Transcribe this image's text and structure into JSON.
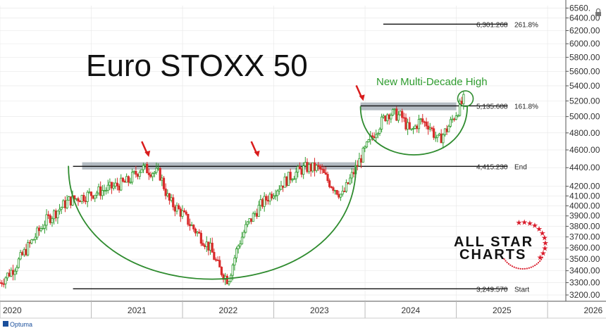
{
  "chart_data": {
    "type": "candlestick",
    "title": "Euro STOXX 50",
    "y_axis": {
      "scale": "log",
      "side": "right",
      "ylim": [
        3150,
        6600
      ],
      "ticks": [
        "6560.",
        "6400.00",
        "6200.00",
        "6000.00",
        "5800.00",
        "5600.00",
        "5400.00",
        "5200.00",
        "5000.00",
        "4800.00",
        "4600.00",
        "4400.00",
        "4200.00",
        "4100.00",
        "4000.00",
        "3900.00",
        "3800.00",
        "3700.00",
        "3600.00",
        "3500.00",
        "3400.00",
        "3300.00",
        "3200.00"
      ]
    },
    "x_axis": {
      "labels": [
        "2020",
        "2021",
        "2022",
        "2023",
        "2024",
        "2025",
        "2026"
      ],
      "xlim": [
        2020.0,
        2026.2
      ]
    },
    "price_path": [
      [
        2020.0,
        3300
      ],
      [
        2020.15,
        3420
      ],
      [
        2020.3,
        3600
      ],
      [
        2020.5,
        3850
      ],
      [
        2020.75,
        4050
      ],
      [
        2021.0,
        4120
      ],
      [
        2021.2,
        4180
      ],
      [
        2021.4,
        4250
      ],
      [
        2021.55,
        4400
      ],
      [
        2021.75,
        4330
      ],
      [
        2021.85,
        4050
      ],
      [
        2022.0,
        3920
      ],
      [
        2022.1,
        3800
      ],
      [
        2022.2,
        3700
      ],
      [
        2022.3,
        3600
      ],
      [
        2022.4,
        3420
      ],
      [
        2022.5,
        3320
      ],
      [
        2022.6,
        3600
      ],
      [
        2022.7,
        3800
      ],
      [
        2022.85,
        4000
      ],
      [
        2023.0,
        4150
      ],
      [
        2023.2,
        4320
      ],
      [
        2023.35,
        4400
      ],
      [
        2023.5,
        4390
      ],
      [
        2023.6,
        4250
      ],
      [
        2023.75,
        4100
      ],
      [
        2023.85,
        4300
      ],
      [
        2023.95,
        4500
      ],
      [
        2024.1,
        4800
      ],
      [
        2024.25,
        5050
      ],
      [
        2024.4,
        5000
      ],
      [
        2024.5,
        4800
      ],
      [
        2024.6,
        4950
      ],
      [
        2024.7,
        4900
      ],
      [
        2024.8,
        4700
      ],
      [
        2024.9,
        4850
      ],
      [
        2025.0,
        5050
      ],
      [
        2025.1,
        5250
      ]
    ],
    "fib_levels": [
      {
        "value": "6,301.268",
        "label": "261.8%",
        "price": 6301.268,
        "x_start": 2024.2
      },
      {
        "value": "5,135.608",
        "label": "161.8%",
        "price": 5135.608,
        "x_start": 2023.95
      },
      {
        "value": "4,415.230",
        "label": "End",
        "price": 4415.23,
        "x_start": 2020.8
      },
      {
        "value": "3,249.570",
        "label": "Start",
        "price": 3249.57,
        "x_start": 2020.8
      }
    ],
    "resistance_zones": [
      {
        "price_low": 4380,
        "price_high": 4460,
        "x_start": 2020.9,
        "x_end": 2023.9
      },
      {
        "price_low": 5080,
        "price_high": 5180,
        "x_start": 2023.95,
        "x_end": 2025.0
      }
    ],
    "arrows": [
      2021.6,
      2022.8,
      2023.95
    ],
    "annotation": "New Multi-Decade High",
    "arc_color": "#2e8b2e",
    "up_color": "#2e9b2e",
    "down_color": "#d92b2b"
  },
  "brand": {
    "line1": "ALL STAR",
    "line2": "CHARTS"
  },
  "footer": {
    "logo": "Optuma"
  },
  "colors": {
    "grid": "#e6e6e6",
    "zone": "#9aa4ad",
    "arrow": "#d91c1c"
  }
}
